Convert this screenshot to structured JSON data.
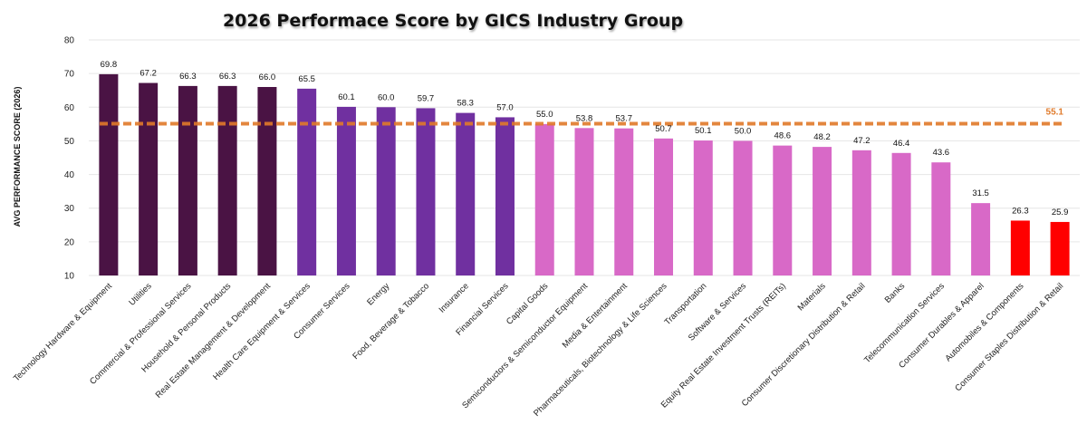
{
  "chart_data": {
    "type": "bar",
    "title": "2026 Performace Score by GICS Industry Group",
    "ylabel": "AVG PERFORMANCE SCORE (2026)",
    "xlabel": "",
    "ylim": [
      10,
      80
    ],
    "yticks": [
      10,
      20,
      30,
      40,
      50,
      60,
      70,
      80
    ],
    "grid": true,
    "categories": [
      "Technology Hardware & Equipment",
      "Utilities",
      "Commercial & Professional Services",
      "Household & Personal Products",
      "Real Estate Management & Development",
      "Health Care Equipment & Services",
      "Consumer Services",
      "Energy",
      "Food, Beverage & Tobacco",
      "Insurance",
      "Financial Services",
      "Capital Goods",
      "Semiconductors & Semiconductor Equipment",
      "Media & Entertainment",
      "Pharmaceuticals, Biotechnology & Life Sciences",
      "Transportation",
      "Software & Services",
      "Equity Real Estate Investment Trusts (REITs)",
      "Materials",
      "Consumer Discretionary Distribution & Retail",
      "Banks",
      "Telecommunication Services",
      "Consumer Durables & Apparel",
      "Automobiles & Components",
      "Consumer Staples Distribution & Retail"
    ],
    "values": [
      69.8,
      67.2,
      66.3,
      66.3,
      66.0,
      65.5,
      60.1,
      60.0,
      59.7,
      58.3,
      57.0,
      55.0,
      53.8,
      53.7,
      50.7,
      50.1,
      50.0,
      48.6,
      48.2,
      47.2,
      46.4,
      43.6,
      31.5,
      26.3,
      25.9
    ],
    "value_labels": [
      "69.8",
      "67.2",
      "66.3",
      "66.3",
      "66.0",
      "65.5",
      "60.1",
      "60.0",
      "59.7",
      "58.3",
      "57.0",
      "55.0",
      "53.8",
      "53.7",
      "50.7",
      "50.1",
      "50.0",
      "48.6",
      "48.2",
      "47.2",
      "46.4",
      "43.6",
      "31.5",
      "26.3",
      "25.9"
    ],
    "bar_colors": [
      "#4a1344",
      "#4a1344",
      "#4a1344",
      "#4a1344",
      "#4a1344",
      "#7030a0",
      "#7030a0",
      "#7030a0",
      "#7030a0",
      "#7030a0",
      "#7030a0",
      "#d869c7",
      "#d869c7",
      "#d869c7",
      "#d869c7",
      "#d869c7",
      "#d869c7",
      "#d869c7",
      "#d869c7",
      "#d869c7",
      "#d869c7",
      "#d869c7",
      "#d869c7",
      "#ff0000",
      "#ff0000"
    ],
    "average": {
      "value": 55.1,
      "label": "55.1",
      "color": "#e07a2a",
      "style": "dashed"
    }
  }
}
